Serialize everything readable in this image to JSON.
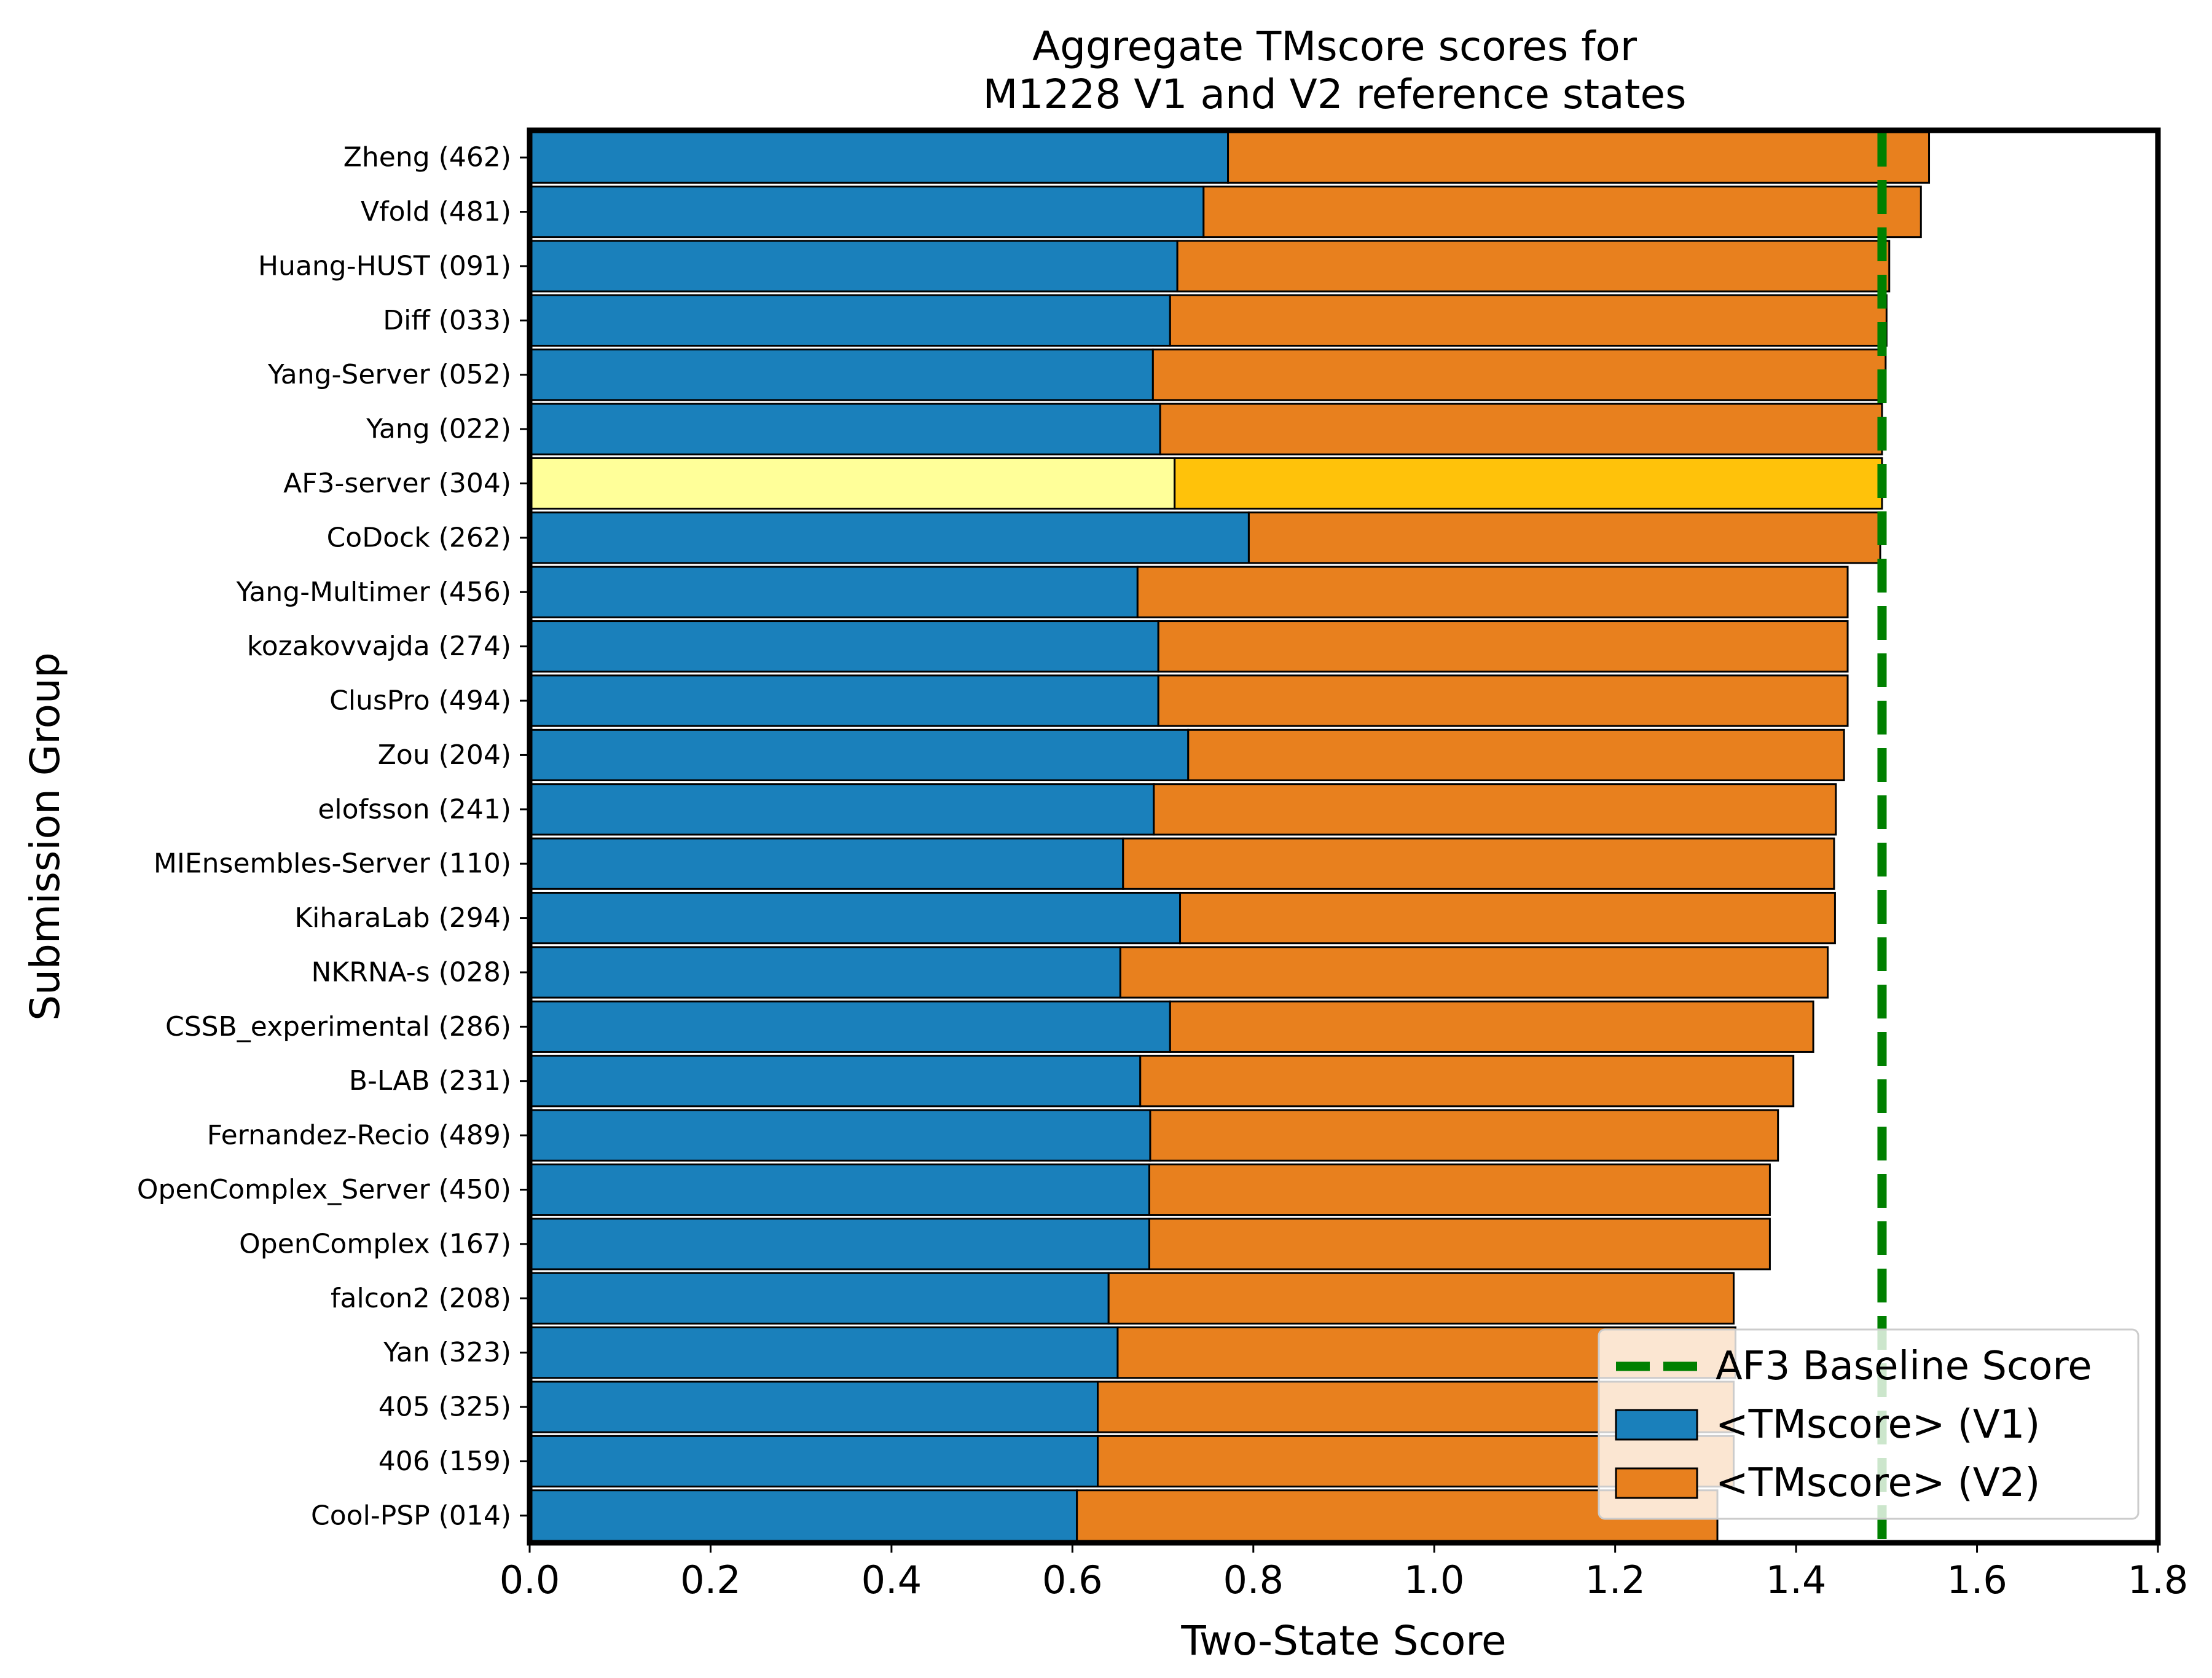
{
  "chart_data": {
    "type": "bar",
    "orientation": "horizontal",
    "stacked": true,
    "title": "Aggregate TMscore scores for\nM1228 V1 and V2 reference states",
    "xlabel": "Two-State Score",
    "ylabel": "Submission Group",
    "xlim": [
      0.0,
      1.8
    ],
    "xticks": [
      "0.0",
      "0.2",
      "0.4",
      "0.6",
      "0.8",
      "1.0",
      "1.2",
      "1.4",
      "1.6",
      "1.8"
    ],
    "categories": [
      "Zheng (462)",
      "Vfold (481)",
      "Huang-HUST (091)",
      "Diff (033)",
      "Yang-Server (052)",
      "Yang (022)",
      "AF3-server (304)",
      "CoDock (262)",
      "Yang-Multimer (456)",
      "kozakovvajda (274)",
      "ClusPro (494)",
      "Zou (204)",
      "elofsson (241)",
      "MIEnsembles-Server (110)",
      "KiharaLab (294)",
      "NKRNA-s (028)",
      "CSSB_experimental (286)",
      "B-LAB (231)",
      "Fernandez-Recio (489)",
      "OpenComplex_Server (450)",
      "OpenComplex (167)",
      "falcon2 (208)",
      "Yan (323)",
      "405 (325)",
      "406 (159)",
      "Cool-PSP (014)"
    ],
    "series": [
      {
        "name": "<TMscore> (V1)",
        "color": "#1a80bb",
        "highlight_color": "#ffff99",
        "values": [
          0.772,
          0.745,
          0.716,
          0.708,
          0.689,
          0.697,
          0.713,
          0.795,
          0.672,
          0.695,
          0.695,
          0.728,
          0.69,
          0.656,
          0.719,
          0.653,
          0.708,
          0.675,
          0.686,
          0.685,
          0.685,
          0.64,
          0.65,
          0.628,
          0.628,
          0.605
        ]
      },
      {
        "name": "<TMscore> (V2)",
        "color": "#e8801e",
        "highlight_color": "#ffc20a",
        "values": [
          0.775,
          0.793,
          0.787,
          0.792,
          0.81,
          0.798,
          0.782,
          0.698,
          0.785,
          0.762,
          0.762,
          0.725,
          0.754,
          0.786,
          0.724,
          0.782,
          0.711,
          0.722,
          0.694,
          0.686,
          0.686,
          0.691,
          0.683,
          0.703,
          0.703,
          0.708
        ]
      }
    ],
    "highlight_category": "AF3-server (304)",
    "baseline": {
      "name": "AF3 Baseline Score",
      "value": 1.495,
      "color": "#008000",
      "style": "dashed"
    },
    "legend": {
      "placement": "lower-right",
      "entries": [
        "AF3 Baseline Score",
        "<TMscore> (V1)",
        "<TMscore> (V2)"
      ]
    },
    "grid": false
  }
}
